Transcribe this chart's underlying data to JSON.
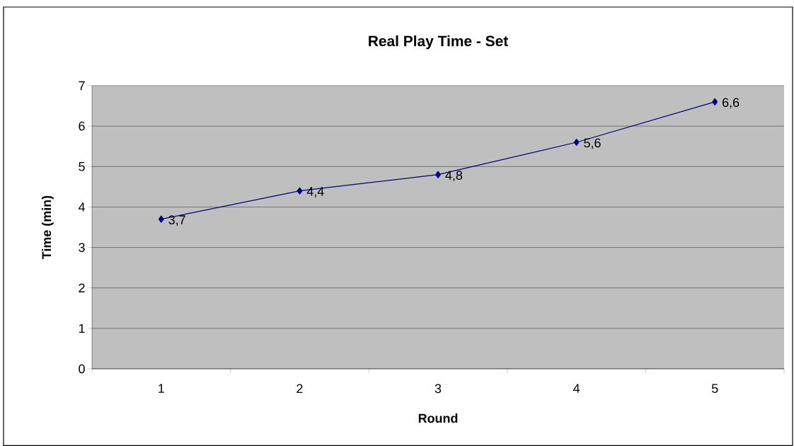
{
  "chart_data": {
    "type": "line",
    "title": "Real Play Time - Set",
    "xlabel": "Round",
    "ylabel": "Time (min)",
    "categories": [
      "1",
      "2",
      "3",
      "4",
      "5"
    ],
    "series": [
      {
        "color": "#000080",
        "values": [
          3.7,
          4.4,
          4.8,
          5.6,
          6.6
        ],
        "value_labels": [
          "3,7",
          "4,4",
          "4,8",
          "5,6",
          "6,6"
        ]
      }
    ],
    "ylim": [
      0,
      7
    ],
    "yticks": [
      0,
      1,
      2,
      3,
      4,
      5,
      6,
      7
    ],
    "grid": "y",
    "marker": "diamond",
    "line_style": "solid"
  }
}
